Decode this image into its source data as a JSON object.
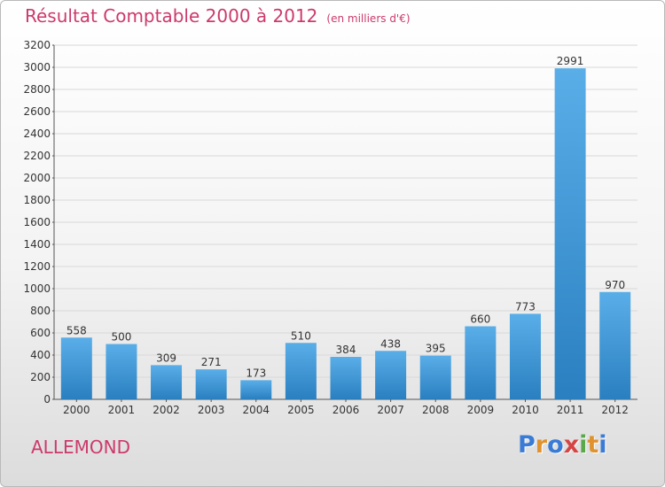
{
  "title": "Résultat Comptable 2000 à 2012",
  "unit": "(en milliers d'€)",
  "commune": "ALLEMOND",
  "logo": {
    "letters": [
      "P",
      "r",
      "o",
      "x",
      "i",
      "t",
      "i"
    ],
    "colors": [
      "#3a7bd5",
      "#e0922f",
      "#3a7bd5",
      "#d64545",
      "#5aa84a",
      "#e0922f",
      "#3a7bd5"
    ]
  },
  "colors": {
    "bar_top": "#5aaee8",
    "bar_bottom": "#2a7fc0",
    "title": "#cc3a6b"
  },
  "chart_data": {
    "type": "bar",
    "title": "Résultat Comptable 2000 à 2012",
    "subtitle": "(en milliers d'€)",
    "xlabel": "",
    "ylabel": "",
    "categories": [
      "2000",
      "2001",
      "2002",
      "2003",
      "2004",
      "2005",
      "2006",
      "2007",
      "2008",
      "2009",
      "2010",
      "2011",
      "2012"
    ],
    "values": [
      558,
      500,
      309,
      271,
      173,
      510,
      384,
      438,
      395,
      660,
      773,
      2991,
      970
    ],
    "ylim": [
      0,
      3200
    ],
    "yticks": [
      0,
      200,
      400,
      600,
      800,
      1000,
      1200,
      1400,
      1600,
      1800,
      2000,
      2200,
      2400,
      2600,
      2800,
      3000,
      3200
    ],
    "grid": true,
    "legend": "none"
  }
}
